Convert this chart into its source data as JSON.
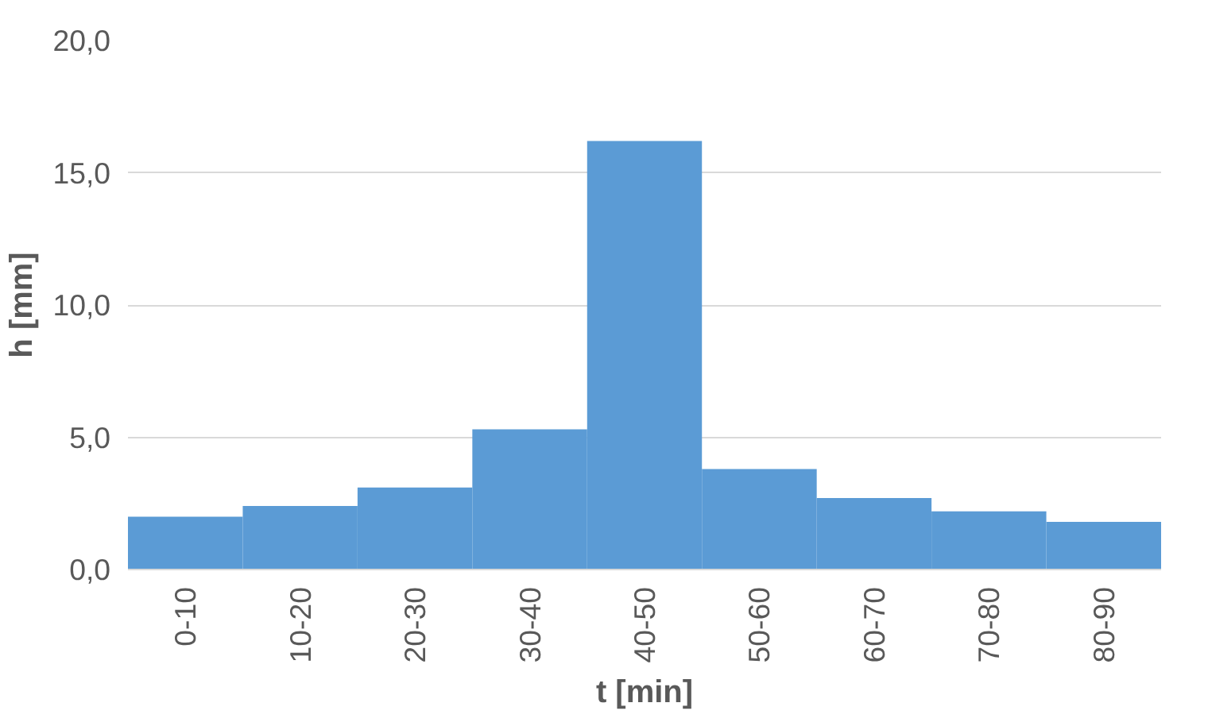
{
  "chart_data": {
    "type": "bar",
    "xlabel": "t [min]",
    "ylabel": "h [mm]",
    "categories": [
      "0-10",
      "10-20",
      "20-30",
      "30-40",
      "40-50",
      "50-60",
      "60-70",
      "70-80",
      "80-90"
    ],
    "values": [
      2.0,
      2.4,
      3.1,
      5.3,
      16.2,
      3.8,
      2.7,
      2.2,
      1.8
    ],
    "color": "#5b9bd5",
    "ylim": [
      0,
      20
    ],
    "yticks": [
      {
        "value": 0,
        "label": "0,0"
      },
      {
        "value": 5,
        "label": "5,0"
      },
      {
        "value": 10,
        "label": "10,0"
      },
      {
        "value": 15,
        "label": "15,0"
      },
      {
        "value": 20,
        "label": "20,0"
      }
    ],
    "grid": "y"
  }
}
